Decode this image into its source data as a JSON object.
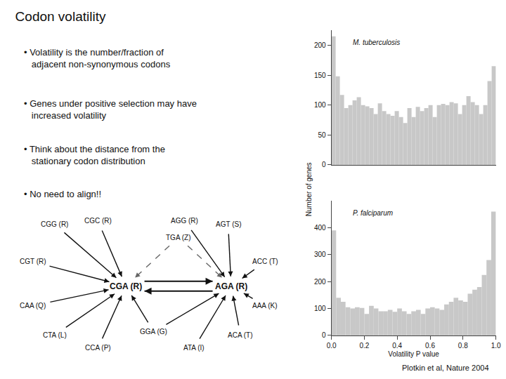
{
  "title": "Codon volatility",
  "annotations": [
    "• Volatility is the number/fraction of\nadjacent non-synonymous codons",
    "• Genes under positive selection may have\nincreased volatility",
    "• Think about the distance from the\nstationary codon distribution",
    "• No need to align!!",
    "Plotkin et al, Nature 2004"
  ],
  "chart_data": [
    {
      "type": "diagram",
      "nodes": [
        "CGA (R)",
        "AGA (R)",
        "CGG (R)",
        "CGC (R)",
        "CGT (R)",
        "CAA (Q)",
        "CTA (L)",
        "CCA (P)",
        "AGG (R)",
        "AGT (S)",
        "ACC (T)",
        "AAA (K)",
        "ACA (T)",
        "ATA (I)",
        "GGA (G)",
        "TGA (Z)"
      ],
      "edges": [
        {
          "from": "CGA (R)",
          "to": "AGA (R)",
          "color": "#111111",
          "line_style": "solid"
        },
        {
          "from": "AGA (R)",
          "to": "CGA (R)",
          "color": "#111111",
          "line_style": "solid"
        },
        {
          "from": "CGG (R)",
          "to": "CGA (R)",
          "color": "#111111",
          "line_style": "solid"
        },
        {
          "from": "CGC (R)",
          "to": "CGA (R)",
          "color": "#111111",
          "line_style": "solid"
        },
        {
          "from": "CGT (R)",
          "to": "CGA (R)",
          "color": "#111111",
          "line_style": "solid"
        },
        {
          "from": "CAA (Q)",
          "to": "CGA (R)",
          "color": "#111111",
          "line_style": "solid"
        },
        {
          "from": "CTA (L)",
          "to": "CGA (R)",
          "color": "#111111",
          "line_style": "solid"
        },
        {
          "from": "CCA (P)",
          "to": "CGA (R)",
          "color": "#111111",
          "line_style": "solid"
        },
        {
          "from": "AGG (R)",
          "to": "AGA (R)",
          "color": "#111111",
          "line_style": "solid"
        },
        {
          "from": "AGT (S)",
          "to": "AGA (R)",
          "color": "#111111",
          "line_style": "solid"
        },
        {
          "from": "ACC (T)",
          "to": "AGA (R)",
          "color": "#111111",
          "line_style": "solid"
        },
        {
          "from": "AAA (K)",
          "to": "AGA (R)",
          "color": "#111111",
          "line_style": "solid"
        },
        {
          "from": "ACA (T)",
          "to": "AGA (R)",
          "color": "#111111",
          "line_style": "solid"
        },
        {
          "from": "ATA (I)",
          "to": "AGA (R)",
          "color": "#111111",
          "line_style": "solid"
        },
        {
          "from": "GGA (G)",
          "to": "CGA (R)",
          "color": "#111111",
          "line_style": "solid"
        },
        {
          "from": "GGA (G)",
          "to": "AGA (R)",
          "color": "#111111",
          "line_style": "solid"
        },
        {
          "from": "TGA (Z)",
          "to": "CGA (R)",
          "color": "#666666",
          "line_style": "dashed"
        },
        {
          "from": "TGA (Z)",
          "to": "AGA (R)",
          "color": "#666666",
          "line_style": "dashed"
        }
      ]
    },
    {
      "type": "histogram",
      "title": "M. tuberculosis",
      "bins": [
        0,
        0.025641025641,
        0.051282051282,
        0.076923076923,
        0.102564102564,
        0.128205128205,
        0.153846153846,
        0.179487179487,
        0.205128205128,
        0.230769230769,
        0.25641025641,
        0.282051282051,
        0.307692307692,
        0.333333333333,
        0.358974358974,
        0.384615384615,
        0.410256410256,
        0.435897435897,
        0.461538461538,
        0.487179487179,
        0.512820512821,
        0.538461538462,
        0.564102564103,
        0.589743589744,
        0.615384615385,
        0.641025641026,
        0.666666666667,
        0.692307692308,
        0.717948717949,
        0.74358974359,
        0.769230769231,
        0.794871794872,
        0.820512820513,
        0.846153846154,
        0.871794871795,
        0.897435897436,
        0.923076923077,
        0.948717948718,
        0.974358974359,
        1
      ],
      "values": [
        215,
        148,
        117,
        95,
        100,
        108,
        113,
        100,
        98,
        95,
        85,
        103,
        90,
        85,
        82,
        90,
        80,
        70,
        95,
        80,
        97,
        90,
        95,
        100,
        80,
        100,
        102,
        100,
        105,
        103,
        85,
        100,
        115,
        105,
        100,
        85,
        100,
        140,
        165
      ],
      "color": "#c8c8c8",
      "xlim": [
        0,
        1
      ],
      "ylim": [
        0,
        225
      ],
      "yticks": [
        0,
        50,
        100,
        150,
        200
      ],
      "tick_labels": "y",
      "grid": false
    },
    {
      "type": "histogram",
      "title": "P. falciparum",
      "bins": [
        0,
        0.028571428571,
        0.057142857143,
        0.085714285714,
        0.114285714286,
        0.142857142857,
        0.171428571429,
        0.2,
        0.228571428571,
        0.257142857143,
        0.285714285714,
        0.314285714286,
        0.342857142857,
        0.371428571429,
        0.4,
        0.428571428571,
        0.457142857143,
        0.485714285714,
        0.514285714286,
        0.542857142857,
        0.571428571429,
        0.6,
        0.628571428571,
        0.657142857143,
        0.685714285714,
        0.714285714286,
        0.742857142857,
        0.771428571429,
        0.8,
        0.828571428571,
        0.857142857143,
        0.885714285714,
        0.914285714286,
        0.942857142857,
        0.971428571429,
        1
      ],
      "values": [
        390,
        140,
        125,
        105,
        100,
        105,
        102,
        80,
        110,
        100,
        90,
        90,
        95,
        88,
        100,
        90,
        80,
        90,
        95,
        80,
        100,
        105,
        100,
        95,
        115,
        125,
        140,
        130,
        125,
        155,
        170,
        180,
        225,
        280,
        460
      ],
      "color": "#c8c8c8",
      "xlim": [
        0,
        1
      ],
      "ylim": [
        0,
        500
      ],
      "xticks": [
        {
          "value": 0,
          "label": "0.0"
        },
        0.2,
        0.4,
        0.6,
        0.8,
        {
          "value": 1,
          "label": "1.0"
        }
      ],
      "yticks": [
        0,
        100,
        200,
        300,
        400
      ],
      "xlabel": "Volatility P value",
      "ylabel": "Number of genes",
      "grid": false
    }
  ]
}
